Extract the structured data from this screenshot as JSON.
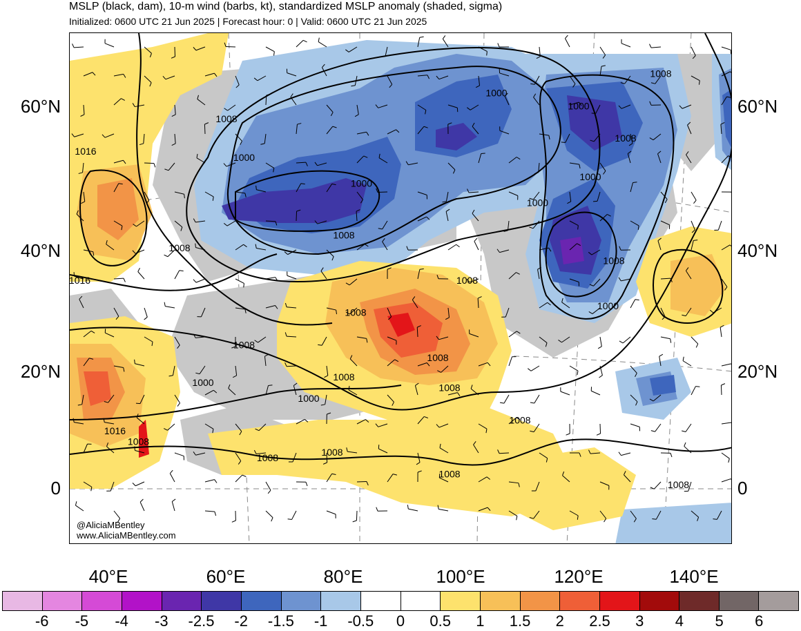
{
  "header": {
    "title": "MSLP (black, dam), 10-m wind (barbs, kt), standardized MSLP anomaly (shaded, sigma)",
    "subtitle": "Initialized: 0600 UTC 21 Jun 2025 | Forecast hour: 0 | Valid: 0600 UTC 21 Jun 2025"
  },
  "map": {
    "region": "Asia",
    "lat_labels": [
      "60°N",
      "40°N",
      "20°N",
      "0"
    ],
    "lon_labels": [
      "40°E",
      "60°E",
      "80°E",
      "100°E",
      "120°E",
      "140°E"
    ],
    "credit_handle": "@AliciaMBentley",
    "credit_site": "www.AliciaMBentley.com",
    "isobar_labels": [
      {
        "text": "1008",
        "lon": 134,
        "lat": 67
      },
      {
        "text": "1000",
        "lon": 106,
        "lat": 64
      },
      {
        "text": "1000",
        "lon": 120,
        "lat": 62
      },
      {
        "text": "1008",
        "lon": 60,
        "lat": 60
      },
      {
        "text": "1016",
        "lon": 36,
        "lat": 55
      },
      {
        "text": "1008",
        "lon": 128,
        "lat": 57
      },
      {
        "text": "1000",
        "lon": 63,
        "lat": 54
      },
      {
        "text": "1000",
        "lon": 83,
        "lat": 50
      },
      {
        "text": "1000",
        "lon": 122,
        "lat": 51
      },
      {
        "text": "1000",
        "lon": 113,
        "lat": 47
      },
      {
        "text": "1008",
        "lon": 80,
        "lat": 42
      },
      {
        "text": "1008",
        "lon": 52,
        "lat": 40
      },
      {
        "text": "1008",
        "lon": 126,
        "lat": 38
      },
      {
        "text": "1016",
        "lon": 35,
        "lat": 35
      },
      {
        "text": "1008",
        "lon": 101,
        "lat": 35
      },
      {
        "text": "1000",
        "lon": 125,
        "lat": 31
      },
      {
        "text": "1008",
        "lon": 82,
        "lat": 30
      },
      {
        "text": "1008",
        "lon": 63,
        "lat": 25
      },
      {
        "text": "1008",
        "lon": 96,
        "lat": 23
      },
      {
        "text": "1000",
        "lon": 56,
        "lat": 19
      },
      {
        "text": "1008",
        "lon": 80,
        "lat": 20
      },
      {
        "text": "1008",
        "lon": 98,
        "lat": 18
      },
      {
        "text": "1000",
        "lon": 74,
        "lat": 16
      },
      {
        "text": "1008",
        "lon": 110,
        "lat": 12
      },
      {
        "text": "1016",
        "lon": 41,
        "lat": 10
      },
      {
        "text": "1008",
        "lon": 45,
        "lat": 8
      },
      {
        "text": "1008",
        "lon": 67,
        "lat": 5
      },
      {
        "text": "1008",
        "lon": 78,
        "lat": 6
      },
      {
        "text": "1008",
        "lon": 98,
        "lat": 2
      },
      {
        "text": "1008",
        "lon": 137,
        "lat": 0
      }
    ],
    "colors": {
      "land_gray": "#c8c8c8",
      "low_anomaly": "#3b4fb0",
      "high_anomaly": "#f08a40"
    }
  },
  "colorbar": {
    "labels": [
      "-6",
      "-5",
      "-4",
      "-3",
      "-2.5",
      "-2",
      "-1.5",
      "-1",
      "-0.5",
      "0",
      "0.5",
      "1",
      "1.5",
      "2",
      "2.5",
      "3",
      "4",
      "5",
      "6"
    ],
    "colors": [
      "#e8b8e4",
      "#e486e0",
      "#d54ad6",
      "#b212c8",
      "#6a25b0",
      "#3f37a6",
      "#3e66bd",
      "#6e93d0",
      "#a8c8e8",
      "#ffffff",
      "#ffffff",
      "#fde26d",
      "#f7c058",
      "#f29447",
      "#ef5f37",
      "#e31519",
      "#a20b0b",
      "#6e2a29",
      "#726666",
      "#a49c9c"
    ]
  }
}
